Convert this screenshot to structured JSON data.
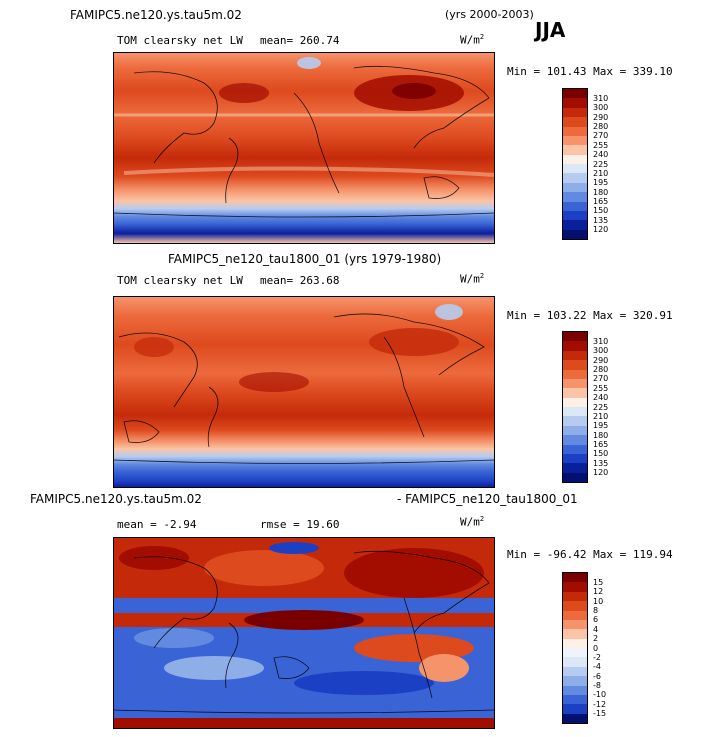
{
  "header": {
    "case_title": "FAMIPC5.ne120.ys.tau5m.02",
    "years": "(yrs 2000-2003)",
    "season": "JJA"
  },
  "panel1": {
    "field": "TOM clearsky net LW",
    "mean": "mean= 260.74",
    "units": "W/m",
    "units_exp": "2",
    "minmax": "Min = 101.43 Max = 339.10",
    "levels": [
      "310",
      "300",
      "290",
      "280",
      "270",
      "255",
      "240",
      "225",
      "210",
      "195",
      "180",
      "165",
      "150",
      "135",
      "120"
    ]
  },
  "panel2": {
    "title": "FAMIPC5_ne120_tau1800_01 (yrs 1979-1980)",
    "field": "TOM clearsky net LW",
    "mean": "mean= 263.68",
    "units": "W/m",
    "units_exp": "2",
    "minmax": "Min = 103.22 Max = 320.91",
    "levels": [
      "310",
      "300",
      "290",
      "280",
      "270",
      "255",
      "240",
      "225",
      "210",
      "195",
      "180",
      "165",
      "150",
      "135",
      "120"
    ]
  },
  "panel3": {
    "title_left": "FAMIPC5.ne120.ys.tau5m.02",
    "title_right": "- FAMIPC5_ne120_tau1800_01",
    "mean": "mean =  -2.94",
    "rmse": "rmse =  19.60",
    "units": "W/m",
    "units_exp": "2",
    "minmax": "Min = -96.42 Max = 119.94",
    "levels": [
      "15",
      "12",
      "10",
      "8",
      "6",
      "4",
      "2",
      "0",
      "-2",
      "-4",
      "-6",
      "-8",
      "-10",
      "-12",
      "-15"
    ]
  },
  "colors": {
    "abs_scale": [
      "#7a0000",
      "#a30d00",
      "#c42a0a",
      "#dd4a1e",
      "#ec6a3c",
      "#f5936b",
      "#fbc4a6",
      "#fdf0e6",
      "#dde8f6",
      "#b5ccf0",
      "#8eaee8",
      "#628ae0",
      "#3a63d6",
      "#1c40c4",
      "#0a1f9a",
      "#031070"
    ],
    "diff_scale": [
      "#7a0000",
      "#a30d00",
      "#c42a0a",
      "#dd4a1e",
      "#ec6a3c",
      "#f5936b",
      "#fbc4a6",
      "#fdf0e6",
      "#f0f4fa",
      "#dde8f6",
      "#b5ccf0",
      "#8eaee8",
      "#628ae0",
      "#3a63d6",
      "#1c40c4",
      "#031070"
    ]
  }
}
